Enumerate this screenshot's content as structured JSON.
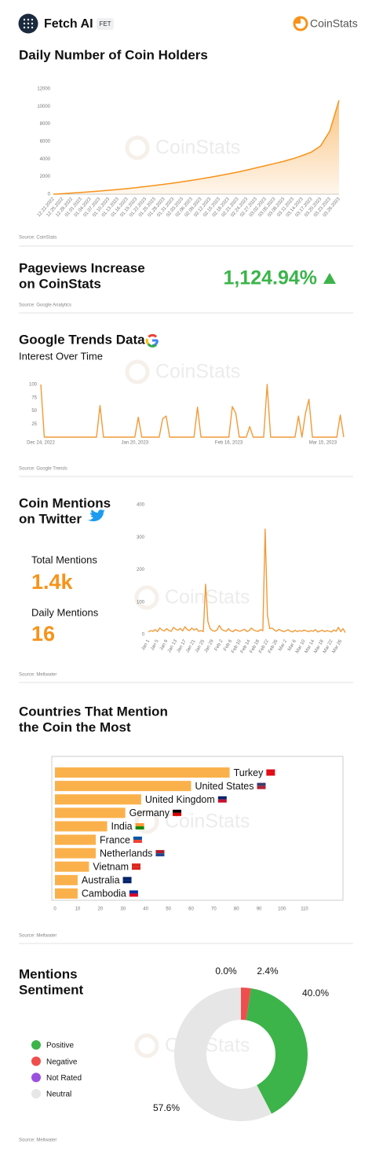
{
  "header": {
    "title": "Fetch AI",
    "ticker": "FET",
    "brand": "CoinStats"
  },
  "watermark": "CoinStats",
  "pageviews": {
    "title_lines": [
      "Pageviews Increase",
      "on CoinStats"
    ],
    "value": "1,124.94%",
    "source": "Source: Google Analytics"
  },
  "chart_data": [
    {
      "type": "area",
      "title": "Daily Number of Coin Holders",
      "source": "Source: CoinStats",
      "color": "#f7931a",
      "categories": [
        "12.22.2022",
        "12.25.2022",
        "12.28.2022",
        "01.01.2023",
        "01.04.2023",
        "01.07.2023",
        "01.10.2023",
        "01.13.2023",
        "01.16.2023",
        "01.19.2023",
        "01.22.2023",
        "01.25.2023",
        "01.28.2023",
        "01.31.2023",
        "02.03.2023",
        "02.06.2023",
        "02.09.2023",
        "02.12.2023",
        "02.15.2023",
        "02.18.2023",
        "02.21.2023",
        "02.24.2023",
        "02.27.2023",
        "03.02.2023",
        "03.05.2023",
        "03.08.2023",
        "03.11.2023",
        "03.14.2023",
        "03.17.2023",
        "03.20.2023",
        "03.23.2023",
        "03.26.2023"
      ],
      "values": [
        0,
        60,
        130,
        200,
        280,
        360,
        450,
        540,
        640,
        750,
        870,
        1000,
        1130,
        1270,
        1420,
        1580,
        1750,
        1930,
        2120,
        2320,
        2520,
        2750,
        3000,
        3250,
        3500,
        3750,
        4050,
        4400,
        4800,
        5500,
        7200,
        10700
      ],
      "ylim": [
        0,
        12000
      ],
      "yticks": [
        0,
        2000,
        4000,
        6000,
        8000,
        10000,
        12000
      ]
    },
    {
      "type": "line",
      "title": "Google Trends Data",
      "subtitle": "Interest Over Time",
      "source": "Source: Google Trends",
      "color": "#f29a38",
      "categories": [
        "Dec 24, 2022",
        null,
        null,
        null,
        null,
        null,
        null,
        null,
        null,
        null,
        null,
        null,
        null,
        null,
        null,
        null,
        null,
        null,
        null,
        null,
        null,
        null,
        null,
        null,
        null,
        null,
        null,
        "Jan 20, 2023",
        null,
        null,
        null,
        null,
        null,
        null,
        null,
        null,
        null,
        null,
        null,
        null,
        null,
        null,
        null,
        null,
        null,
        null,
        null,
        null,
        null,
        null,
        null,
        null,
        null,
        null,
        "Feb 16, 2023",
        null,
        null,
        null,
        null,
        null,
        null,
        null,
        null,
        null,
        null,
        null,
        null,
        null,
        null,
        null,
        null,
        null,
        null,
        null,
        null,
        null,
        null,
        null,
        null,
        null,
        null,
        "Mar 15, 2023",
        null,
        null,
        null,
        null,
        null,
        null
      ],
      "values": [
        100,
        0,
        0,
        0,
        0,
        0,
        0,
        0,
        0,
        0,
        0,
        0,
        0,
        0,
        0,
        0,
        0,
        60,
        0,
        0,
        0,
        0,
        0,
        0,
        0,
        0,
        0,
        0,
        38,
        0,
        0,
        0,
        0,
        0,
        0,
        35,
        40,
        0,
        0,
        0,
        0,
        0,
        0,
        0,
        0,
        57,
        0,
        0,
        0,
        0,
        0,
        0,
        0,
        0,
        0,
        58,
        45,
        0,
        0,
        0,
        20,
        0,
        0,
        0,
        0,
        100,
        0,
        0,
        0,
        0,
        0,
        0,
        0,
        0,
        40,
        0,
        45,
        72,
        0,
        0,
        0,
        0,
        0,
        0,
        0,
        0,
        42,
        0
      ],
      "ylim": [
        0,
        100
      ],
      "yticks": [
        25,
        50,
        75,
        100
      ]
    },
    {
      "type": "line",
      "title_lines": [
        "Coin Mentions",
        "on Twitter"
      ],
      "source": "Source: Meltwater",
      "color": "#f29a38",
      "stats": [
        {
          "name": "Total Mentions",
          "value": "1.4k"
        },
        {
          "name": "Daily Mentions",
          "value": 16
        }
      ],
      "categories": [
        "Jan 1",
        null,
        null,
        null,
        "Jan 5",
        null,
        null,
        null,
        "Jan 9",
        null,
        null,
        null,
        "Jan 13",
        null,
        null,
        null,
        "Jan 17",
        null,
        null,
        null,
        "Jan 21",
        null,
        null,
        null,
        "Jan 25",
        null,
        null,
        null,
        "Jan 29",
        null,
        null,
        null,
        "Feb 2",
        null,
        null,
        null,
        "Feb 6",
        null,
        null,
        null,
        "Feb 10",
        null,
        null,
        null,
        "Feb 14",
        null,
        null,
        null,
        "Feb 18",
        null,
        null,
        null,
        "Feb 22",
        null,
        null,
        null,
        "Feb 26",
        null,
        null,
        null,
        "Mar 2",
        null,
        null,
        null,
        "Mar 6",
        null,
        null,
        null,
        "Mar 10",
        null,
        null,
        null,
        "Mar 14",
        null,
        null,
        null,
        "Mar 18",
        null,
        null,
        null,
        "Mar 22",
        null,
        null,
        null,
        "Mar 26",
        null,
        null
      ],
      "values": [
        8,
        12,
        10,
        15,
        9,
        20,
        14,
        11,
        18,
        12,
        10,
        22,
        16,
        13,
        19,
        11,
        24,
        15,
        12,
        20,
        14,
        18,
        10,
        12,
        9,
        155,
        40,
        18,
        12,
        10,
        14,
        28,
        16,
        12,
        10,
        18,
        11,
        9,
        15,
        12,
        10,
        13,
        16,
        9,
        12,
        20,
        14,
        11,
        10,
        15,
        12,
        325,
        60,
        18,
        20,
        14,
        10,
        16,
        12,
        9,
        11,
        15,
        10,
        8,
        13,
        9,
        12,
        10,
        14,
        11,
        9,
        12,
        10,
        15,
        8,
        11,
        13,
        9,
        12,
        10,
        8,
        14,
        10,
        22,
        9,
        18,
        6
      ],
      "ylim": [
        0,
        400
      ],
      "yticks": [
        0,
        100,
        200,
        300,
        400
      ]
    },
    {
      "type": "hbar",
      "title_lines": [
        "Countries That Mention",
        "the Coin the Most"
      ],
      "source": "Source: Meltwater",
      "color": "#fbb14b",
      "categories": [
        "Turkey",
        "United States",
        "United Kingdom",
        "Germany",
        "India",
        "France",
        "Netherlands",
        "Vietnam",
        "Australia",
        "Cambodia"
      ],
      "values": [
        77,
        60,
        38,
        31,
        23,
        18,
        18,
        15,
        10,
        10
      ],
      "xlim": [
        0,
        110
      ],
      "xticks": [
        0,
        10,
        20,
        30,
        40,
        50,
        60,
        70,
        80,
        90,
        100,
        110
      ]
    },
    {
      "type": "donut",
      "title_lines": [
        "Mentions",
        "Sentiment"
      ],
      "source": "Source: Meltwater",
      "categories": [
        "Positive",
        "Negative",
        "Not Rated",
        "Neutral"
      ],
      "values": [
        40.0,
        2.4,
        0.0,
        57.6
      ],
      "value_labels": [
        "40.0%",
        "2.4%",
        "0.0%",
        "57.6%"
      ],
      "colors": [
        "#3cb44a",
        "#f04e4e",
        "#9b51e0",
        "#e6e6e6"
      ]
    }
  ]
}
